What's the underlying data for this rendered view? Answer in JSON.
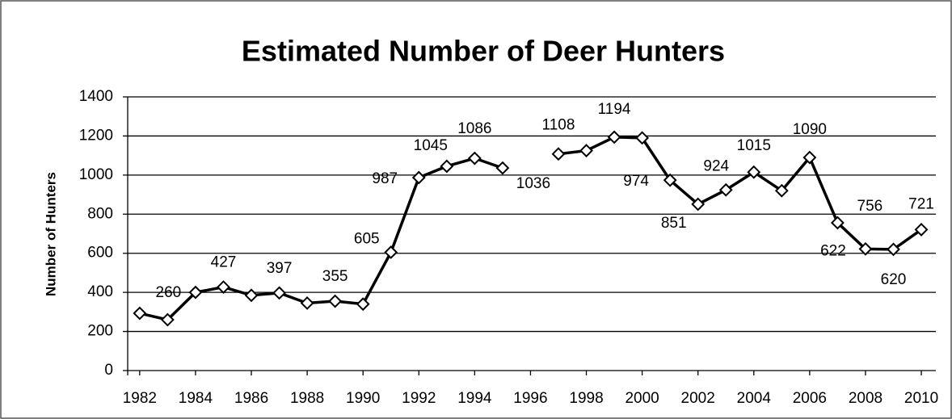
{
  "chart_data": {
    "type": "line",
    "title": "Estimated Number of Deer Hunters",
    "y_label": "Number of Hunters",
    "x": [
      1982,
      1983,
      1984,
      1985,
      1986,
      1987,
      1988,
      1989,
      1990,
      1991,
      1992,
      1993,
      1994,
      1995,
      1996,
      1997,
      1998,
      1999,
      2000,
      2001,
      2002,
      2003,
      2004,
      2005,
      2006,
      2007,
      2008,
      2009,
      2010
    ],
    "series": [
      {
        "name": "Hunters",
        "color": "#000000",
        "values": [
          293,
          260,
          400,
          427,
          385,
          397,
          345,
          355,
          340,
          605,
          987,
          1045,
          1086,
          1036,
          null,
          1108,
          1125,
          1194,
          1190,
          974,
          851,
          924,
          1015,
          920,
          1090,
          756,
          622,
          620,
          721
        ],
        "value_labels": [
          null,
          "260",
          null,
          "427",
          null,
          "397",
          null,
          "355",
          null,
          "605",
          "987",
          "1045",
          "1086",
          "1036",
          null,
          "1108",
          null,
          "1194",
          null,
          "974",
          "851",
          "924",
          "1015",
          null,
          "1090",
          "756",
          "622",
          "620",
          "721"
        ]
      }
    ],
    "xlim": [
      1981.57,
      2010.52
    ],
    "xticks": [
      1982,
      1984,
      1986,
      1988,
      1990,
      1992,
      1994,
      1996,
      1998,
      2000,
      2002,
      2004,
      2006,
      2008,
      2010
    ],
    "ylim": [
      0,
      1400
    ],
    "yticks": [
      0,
      200,
      400,
      600,
      800,
      1000,
      1200,
      1400
    ],
    "grid": true
  }
}
